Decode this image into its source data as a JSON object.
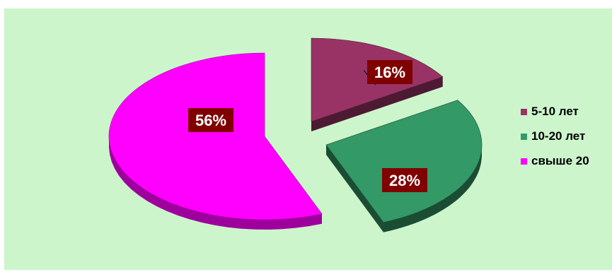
{
  "chart_data": {
    "type": "pie",
    "style": "3d-exploded",
    "legend_position": "right",
    "slices": [
      {
        "name": "5-10 лет",
        "value": 16,
        "label": "16%",
        "color": "#993366",
        "side_color": "#4d1a33"
      },
      {
        "name": "10-20 лет",
        "value": 28,
        "label": "28%",
        "color": "#339966",
        "side_color": "#1a4d33"
      },
      {
        "name": "свыше 20",
        "value": 56,
        "label": "56%",
        "color": "#ff00ff",
        "side_color": "#9e009e"
      }
    ],
    "background_color": "#ccf5cc",
    "label_box_color": "#800000"
  }
}
